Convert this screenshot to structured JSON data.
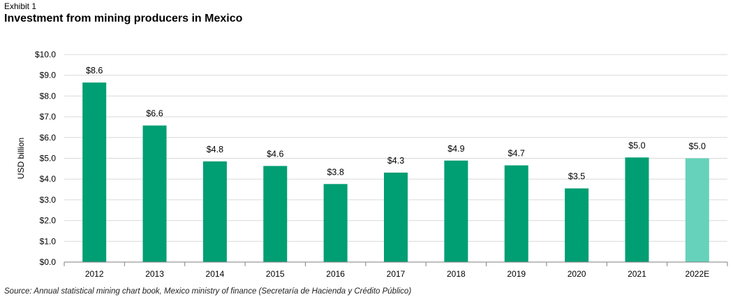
{
  "header": {
    "exhibit": "Exhibit 1",
    "title": "Investment from mining producers in Mexico"
  },
  "footer": {
    "source": "Source: Annual statistical mining chart book, Mexico ministry of finance (Secretaría de Hacienda y Crédito Público)"
  },
  "colors": {
    "actual": "#009e73",
    "estimate": "#66d2bb",
    "grid": "#d9d9d9",
    "axis": "#7f7f7f"
  },
  "chart_data": {
    "type": "bar",
    "title": "Investment from mining producers in Mexico",
    "xlabel": "",
    "ylabel": "USD billion",
    "ylim": [
      0,
      10
    ],
    "yticks": [
      0,
      1,
      2,
      3,
      4,
      5,
      6,
      7,
      8,
      9,
      10
    ],
    "ytick_labels": [
      "$0.0",
      "$1.0",
      "$2.0",
      "$3.0",
      "$4.0",
      "$5.0",
      "$6.0",
      "$7.0",
      "$8.0",
      "$9.0",
      "$10.0"
    ],
    "categories": [
      "2012",
      "2013",
      "2014",
      "2015",
      "2016",
      "2017",
      "2018",
      "2019",
      "2020",
      "2021",
      "2022E"
    ],
    "values": [
      8.65,
      6.58,
      4.85,
      4.63,
      3.76,
      4.31,
      4.89,
      4.66,
      3.55,
      5.04,
      5.0
    ],
    "data_labels": [
      "$8.6",
      "$6.6",
      "$4.8",
      "$4.6",
      "$3.8",
      "$4.3",
      "$4.9",
      "$4.7",
      "$3.5",
      "$5.0",
      "$5.0"
    ],
    "estimate_flags": [
      false,
      false,
      false,
      false,
      false,
      false,
      false,
      false,
      false,
      false,
      true
    ],
    "grid": true,
    "legend": "none"
  }
}
